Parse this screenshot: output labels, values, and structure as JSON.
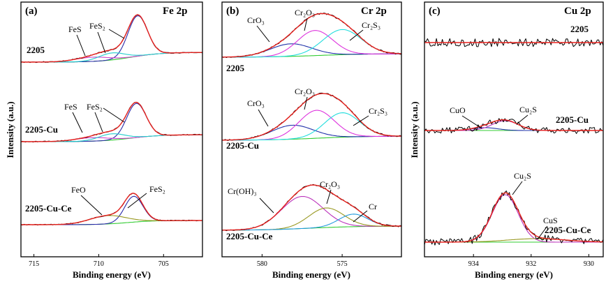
{
  "chart_data": [
    {
      "type": "line",
      "panel_label": "(a)",
      "title": "Fe 2p",
      "xlabel": "Binding energy (eV)",
      "ylabel": "Intensity (a.u.)",
      "xlim": [
        716,
        702
      ],
      "x_ticks": [
        715,
        710,
        705
      ],
      "samples": [
        {
          "name": "2205",
          "peaks": [
            {
              "label": "FeS",
              "center": 710.5
            },
            {
              "label": "FeS₂",
              "center": 709.0
            },
            {
              "label": "",
              "center": 707.0
            }
          ]
        },
        {
          "name": "2205-Cu",
          "peaks": [
            {
              "label": "FeS",
              "center": 710.5
            },
            {
              "label": "FeS₂",
              "center": 709.0
            },
            {
              "label": "",
              "center": 707.1
            }
          ]
        },
        {
          "name": "2205-Cu-Ce",
          "peaks": [
            {
              "label": "FeO",
              "center": 709.3
            },
            {
              "label": "FeS₂",
              "center": 707.3
            }
          ]
        }
      ]
    },
    {
      "type": "line",
      "panel_label": "(b)",
      "title": "Cr 2p",
      "xlabel": "Binding energy (eV)",
      "ylabel": "",
      "xlim": [
        582.5,
        571.3
      ],
      "x_ticks": [
        580,
        575
      ],
      "samples": [
        {
          "name": "2205",
          "peaks": [
            {
              "label": "CrO₃",
              "center": 578.2
            },
            {
              "label": "Cr₂O₃",
              "center": 576.7
            },
            {
              "label": "Cr₂S₃",
              "center": 575.0
            }
          ]
        },
        {
          "name": "2205-Cu",
          "peaks": [
            {
              "label": "CrO₃",
              "center": 578.1
            },
            {
              "label": "Cr₂O₃",
              "center": 576.6
            },
            {
              "label": "Cr₂S₃",
              "center": 575.0
            }
          ]
        },
        {
          "name": "2205-Cu-Ce",
          "peaks": [
            {
              "label": "Cr(OH)₃",
              "center": 577.5
            },
            {
              "label": "Cr₂O₃",
              "center": 576.0
            },
            {
              "label": "Cr",
              "center": 574.3
            }
          ]
        }
      ]
    },
    {
      "type": "line",
      "panel_label": "(c)",
      "title": "Cu 2p",
      "xlabel": "Binding energy (eV)",
      "ylabel": "Intensity (a.u.)",
      "xlim": [
        935.7,
        929.5
      ],
      "x_ticks": [
        934,
        932,
        930
      ],
      "samples": [
        {
          "name": "2205",
          "peaks": []
        },
        {
          "name": "2205-Cu",
          "peaks": [
            {
              "label": "CuO",
              "center": 933.6
            },
            {
              "label": "Cu₂S",
              "center": 932.9
            }
          ]
        },
        {
          "name": "2205-Cu-Ce",
          "peaks": [
            {
              "label": "Cu₂S",
              "center": 932.9
            },
            {
              "label": "CuS",
              "center": 931.8
            }
          ]
        }
      ]
    }
  ],
  "colors": {
    "experimental": "#000000",
    "envelope": "#e8221e",
    "background": "#33cc33",
    "fe_main": "#2a2aa8",
    "fe_fes": "#cc44cc",
    "fe_fes2": "#22cccc",
    "feo": "#999922",
    "cro3": "#2233aa",
    "cr2o3": "#dd33dd",
    "cr2s3": "#22dddd",
    "croh3": "#bb33bb",
    "cr2o3_ce": "#999922",
    "cr_metal": "#2299dd",
    "cuo": "#2233aa",
    "cu2s": "#bb33bb",
    "cus": "#999922",
    "cu_bg": "#2299dd"
  }
}
